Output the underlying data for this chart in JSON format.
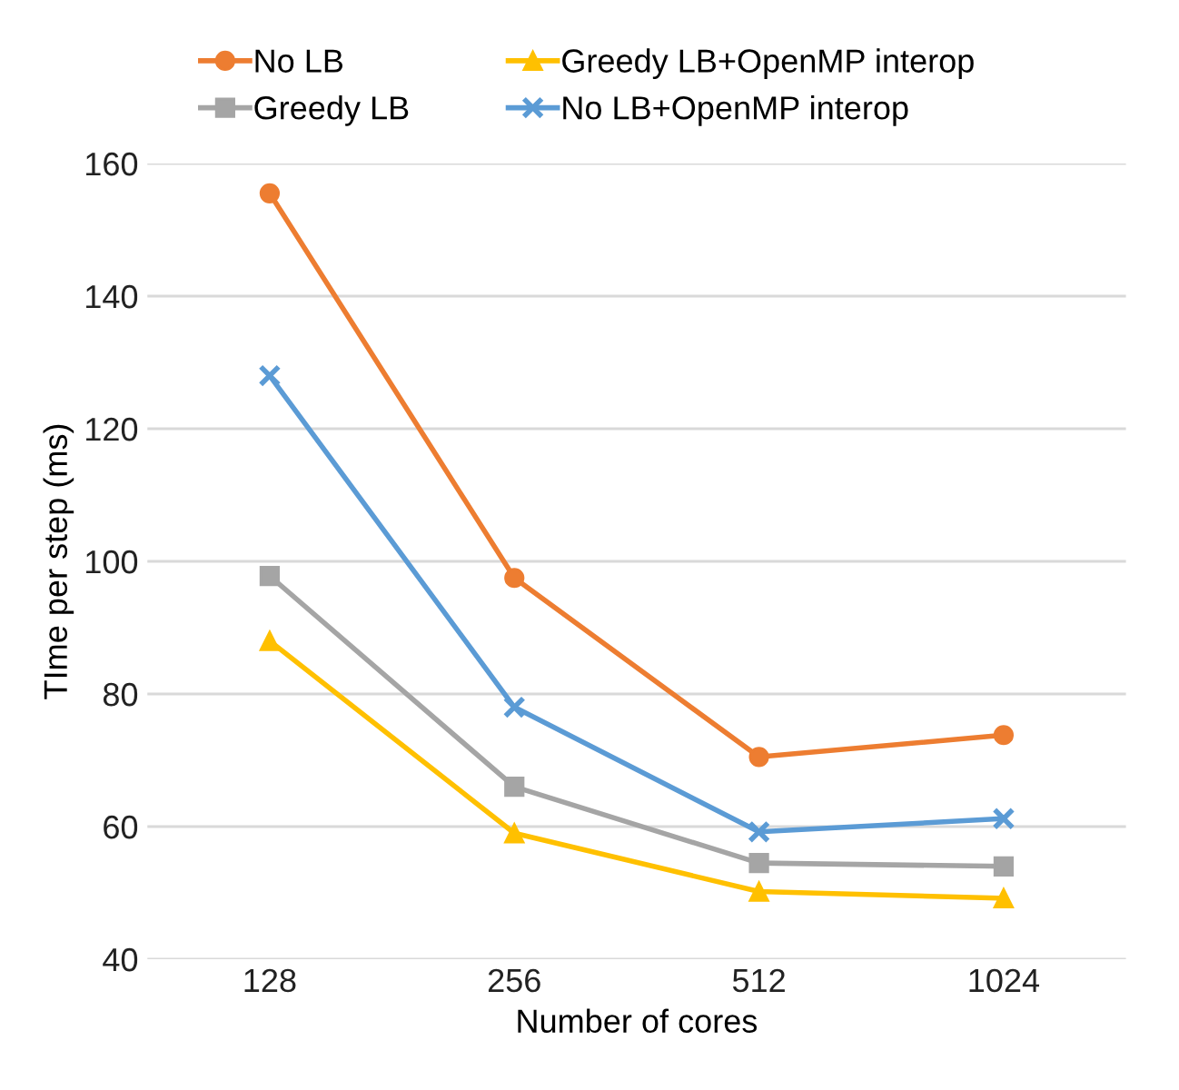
{
  "chart_data": {
    "type": "line",
    "xlabel": "Number of cores",
    "ylabel": "TIme per step (ms)",
    "categories": [
      "128",
      "256",
      "512",
      "1024"
    ],
    "series": [
      {
        "name": "No LB",
        "color": "#ed7d31",
        "marker": "circle",
        "values": [
          155.5,
          97.5,
          70.5,
          73.8
        ]
      },
      {
        "name": "Greedy LB",
        "color": "#a5a5a5",
        "marker": "square",
        "values": [
          97.8,
          66,
          54.5,
          54
        ]
      },
      {
        "name": "Greedy LB+OpenMP interop",
        "color": "#ffc000",
        "marker": "triangle",
        "values": [
          88,
          59,
          50.2,
          49.2
        ]
      },
      {
        "name": "No LB+OpenMP interop",
        "color": "#5b9bd5",
        "marker": "cross",
        "values": [
          128,
          78,
          59.2,
          61.2
        ]
      }
    ],
    "ylim": [
      40,
      160
    ],
    "yticks": [
      40,
      60,
      80,
      100,
      120,
      140,
      160
    ],
    "grid": "y",
    "legend": "top",
    "line_style": "solid"
  }
}
